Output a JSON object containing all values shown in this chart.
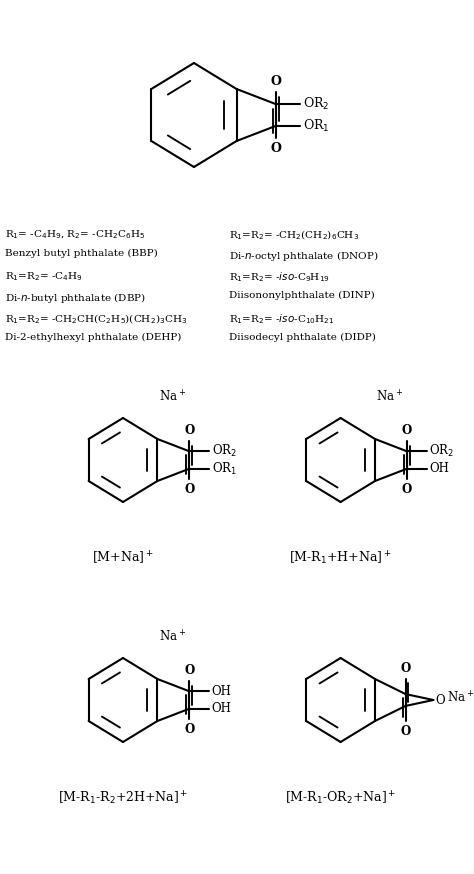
{
  "bg_color": "#ffffff",
  "line_color": "#000000",
  "line_width": 1.5,
  "text_color": "#000000",
  "fig_width": 4.74,
  "fig_height": 8.74,
  "font_family": "DejaVu Serif",
  "left_text_lines": [
    "R$_1$= -C$_4$H$_9$, R$_2$= -CH$_2$C$_6$H$_5$",
    "Benzyl butyl phthalate (BBP)",
    "R$_1$=R$_2$= -C$_4$H$_9$",
    "Di-$n$-butyl phthalate (DBP)",
    "R$_1$=R$_2$= -CH$_2$CH(C$_2$H$_5$)(CH$_2$)$_3$CH$_3$",
    "Di-2-ethylhexyl phthalate (DEHP)"
  ],
  "right_text_lines": [
    "R$_1$=R$_2$= -CH$_2$(CH$_2$)$_6$CH$_3$",
    "Di-$n$-octyl phthalate (DNOP)",
    "R$_1$=R$_2$= -$\\it{iso}$-C$_9$H$_{19}$",
    "Diisononylphthalate (DINP)",
    "R$_1$=R$_2$= -$\\it{iso}$-C$_{10}$H$_{21}$",
    "Diisodecyl phthalate (DIDP)"
  ]
}
